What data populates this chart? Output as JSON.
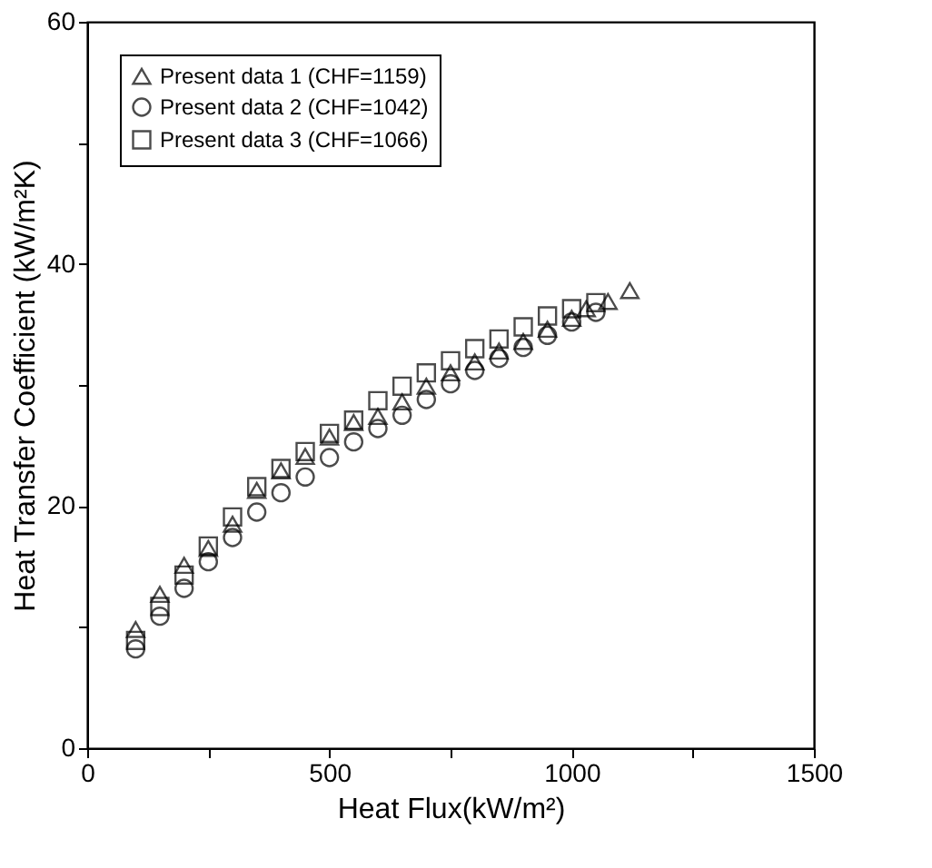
{
  "chart_data": {
    "type": "scatter",
    "xlabel": "Heat Flux(kW/m²)",
    "ylabel": "Heat Transfer Coefficient (kW/m²K)",
    "xlim": [
      0,
      1500
    ],
    "ylim": [
      0,
      60
    ],
    "xticks": [
      0,
      {
        "value": 250,
        "label": null
      },
      500,
      {
        "value": 750,
        "label": null
      },
      1000,
      {
        "value": 1250,
        "label": null
      },
      1500
    ],
    "yticks": [
      0,
      {
        "value": 10,
        "label": null
      },
      20,
      {
        "value": 30,
        "label": null
      },
      40,
      {
        "value": 50,
        "label": null
      },
      60
    ],
    "grid": false,
    "legend": "top left",
    "series": [
      {
        "name": "Present data 1 (CHF=1159)",
        "color": "#000000",
        "marker": "triangle",
        "x": [
          100,
          150,
          200,
          250,
          300,
          350,
          400,
          450,
          500,
          550,
          600,
          650,
          700,
          750,
          800,
          850,
          900,
          950,
          1000,
          1030,
          1075,
          1120
        ],
        "values": [
          9.8,
          12.7,
          15.1,
          16.5,
          18.5,
          21.3,
          22.9,
          24.1,
          25.7,
          26.9,
          27.4,
          28.6,
          29.9,
          31.0,
          31.9,
          32.8,
          33.6,
          34.6,
          35.5,
          36.3,
          36.9,
          37.8
        ]
      },
      {
        "name": "Present data 2 (CHF=1042)",
        "color": "#000000",
        "marker": "circle",
        "x": [
          100,
          150,
          200,
          250,
          300,
          350,
          400,
          450,
          500,
          550,
          600,
          650,
          700,
          750,
          800,
          850,
          900,
          950,
          1000,
          1050
        ],
        "values": [
          8.2,
          10.9,
          13.2,
          15.4,
          17.4,
          19.5,
          21.1,
          22.4,
          24.0,
          25.3,
          26.4,
          27.5,
          28.8,
          30.1,
          31.2,
          32.2,
          33.1,
          34.1,
          35.2,
          36.0
        ]
      },
      {
        "name": "Present data 3 (CHF=1066)",
        "color": "#000000",
        "marker": "square",
        "x": [
          100,
          150,
          200,
          250,
          300,
          350,
          400,
          450,
          500,
          550,
          600,
          650,
          700,
          750,
          800,
          850,
          900,
          950,
          1000,
          1050
        ],
        "values": [
          8.9,
          11.7,
          14.3,
          16.7,
          19.1,
          21.6,
          23.1,
          24.5,
          26.0,
          27.1,
          28.7,
          29.9,
          31.0,
          32.0,
          33.0,
          33.8,
          34.8,
          35.7,
          36.3,
          36.8
        ]
      }
    ]
  }
}
